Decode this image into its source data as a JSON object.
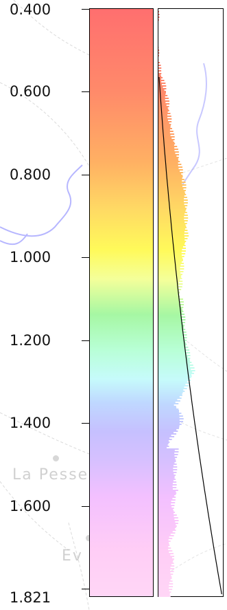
{
  "map": {
    "places": [
      {
        "name": "La Pesse"
      },
      {
        "name": "Ev"
      }
    ]
  },
  "legend": {
    "ticks": [
      "0.400",
      "0.600",
      "0.800",
      "1.000",
      "1.200",
      "1.400",
      "1.600",
      "1.821"
    ],
    "range": [
      0.4,
      1.821
    ],
    "colors": {
      "high_end": "#ff6f6f",
      "mid": "#fffa5a",
      "low_end": "#ffd6f6",
      "curve": "#000000",
      "river": "#b8b8ff"
    }
  }
}
